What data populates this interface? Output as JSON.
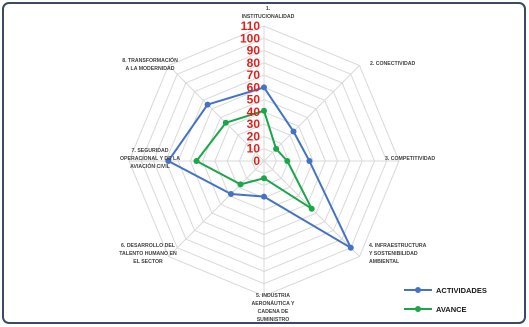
{
  "chart_data": {
    "type": "radar",
    "axes": [
      [
        "1.",
        "INSTITUCIONALIDAD"
      ],
      [
        "2. CONECTIVIDAD"
      ],
      [
        "3. COMPETITIVIDAD"
      ],
      [
        "4. INFRAESTRUCTURA",
        "Y SOSTENIBILIDAD",
        "AMBIENTAL"
      ],
      [
        "5. INDUSTRIA",
        "AERONÁUTICA Y",
        "CADENA DE",
        "SUMINISTRO"
      ],
      [
        "6. DESARROLLO DEL",
        "TALENTO HUMANO EN",
        "EL SECTOR"
      ],
      [
        "7. SEGURIDAD",
        "OPERACIONAL Y DE LA",
        "AVIACIÓN CIVIL"
      ],
      [
        "8. TRANSFORMACIÓN",
        "A LA MODERNIDAD"
      ]
    ],
    "ticks": [
      0,
      10,
      20,
      30,
      40,
      50,
      60,
      70,
      80,
      90,
      100,
      110
    ],
    "rmax": 110,
    "series": [
      {
        "name": "ACTIVIDADES",
        "color": "#4472c4",
        "values": [
          60,
          34,
          37,
          100,
          29,
          38,
          78,
          65
        ]
      },
      {
        "name": "AVANCE",
        "color": "#1aa64a",
        "values": [
          41,
          14,
          19,
          55,
          14,
          27,
          55,
          44
        ]
      }
    ],
    "legend": "bottom-right",
    "grid": true
  }
}
